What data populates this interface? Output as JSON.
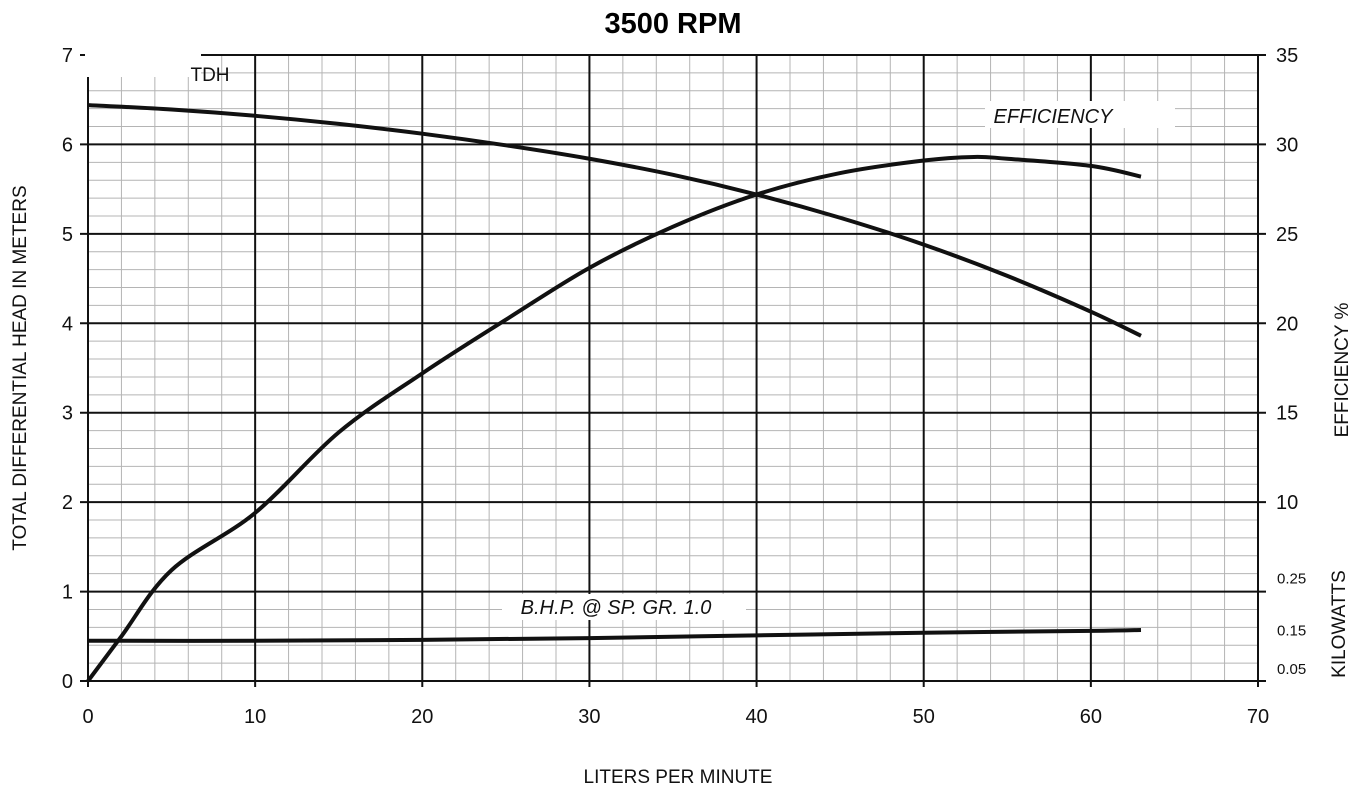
{
  "chart_data": {
    "type": "line",
    "title": "3500 RPM",
    "xlabel": "LITERS PER MINUTE",
    "ylabel": "TOTAL DIFFERENTIAL HEAD IN METERS",
    "y2label": "EFFICIENCY %",
    "y3label": "KILOWATTS",
    "xlim": [
      0,
      70
    ],
    "ylim": [
      0,
      7
    ],
    "y2lim": [
      0,
      35
    ],
    "x_ticks": [
      "0",
      "10",
      "20",
      "30",
      "40",
      "50",
      "60",
      "70"
    ],
    "y_ticks": [
      "0",
      "1",
      "2",
      "3",
      "4",
      "5",
      "6",
      "7"
    ],
    "y2_ticks": [
      "10",
      "15",
      "20",
      "25",
      "30",
      "35"
    ],
    "y3_ticks": [
      "0.05",
      "0.15",
      "0.25"
    ],
    "grid": true,
    "series": [
      {
        "name": "TDH",
        "axis": "left",
        "x": [
          0,
          5,
          10,
          15,
          20,
          25,
          30,
          35,
          40,
          45,
          50,
          55,
          60,
          63
        ],
        "values": [
          6.44,
          6.39,
          6.32,
          6.23,
          6.12,
          5.99,
          5.84,
          5.66,
          5.44,
          5.18,
          4.88,
          4.53,
          4.13,
          3.86
        ]
      },
      {
        "name": "EFFICIENCY",
        "axis": "right",
        "x": [
          0,
          2,
          5,
          10,
          15,
          20,
          25,
          30,
          35,
          40,
          45,
          50,
          53,
          55,
          60,
          63
        ],
        "values": [
          0,
          2.5,
          6.2,
          9.4,
          13.9,
          17.2,
          20.2,
          23.1,
          25.4,
          27.2,
          28.4,
          29.1,
          29.3,
          29.2,
          28.8,
          28.2
        ]
      },
      {
        "name": "B.H.P. @ SP. GR. 1.0",
        "axis": "left",
        "x": [
          0,
          10,
          20,
          30,
          40,
          50,
          60,
          63
        ],
        "values": [
          0.45,
          0.45,
          0.46,
          0.48,
          0.51,
          0.54,
          0.56,
          0.57
        ]
      }
    ],
    "annotations": {
      "tdh": "TDH",
      "efficiency": "EFFICIENCY",
      "bhp": "B.H.P. @ SP. GR. 1.0"
    }
  }
}
